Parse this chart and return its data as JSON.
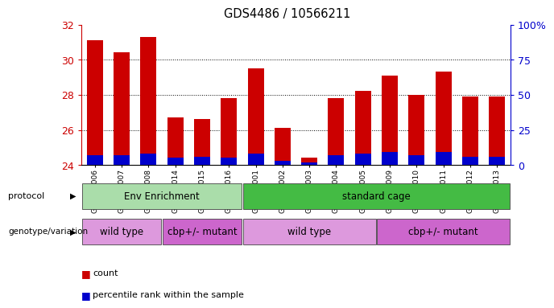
{
  "title": "GDS4486 / 10566211",
  "samples": [
    "GSM766006",
    "GSM766007",
    "GSM766008",
    "GSM766014",
    "GSM766015",
    "GSM766016",
    "GSM766001",
    "GSM766002",
    "GSM766003",
    "GSM766004",
    "GSM766005",
    "GSM766009",
    "GSM766010",
    "GSM766011",
    "GSM766012",
    "GSM766013"
  ],
  "count_values": [
    31.1,
    30.4,
    31.3,
    26.7,
    26.6,
    27.8,
    29.5,
    26.1,
    24.4,
    27.8,
    28.2,
    29.1,
    28.0,
    29.3,
    27.9,
    27.9
  ],
  "percentile_values": [
    7,
    7,
    8,
    5,
    6,
    5,
    8,
    3,
    2,
    7,
    8,
    9,
    7,
    9,
    6,
    6
  ],
  "ymin": 24,
  "ymax": 32,
  "bar_color": "#cc0000",
  "blue_color": "#0000cc",
  "grid_yticks": [
    24,
    26,
    28,
    30,
    32
  ],
  "right_yticks": [
    0,
    25,
    50,
    75,
    100
  ],
  "proto_spans": [
    {
      "label": "Env Enrichment",
      "start": 0,
      "end": 6,
      "color": "#aaddaa"
    },
    {
      "label": "standard cage",
      "start": 6,
      "end": 16,
      "color": "#44bb44"
    }
  ],
  "geno_spans": [
    {
      "label": "wild type",
      "start": 0,
      "end": 3,
      "color": "#dd99dd"
    },
    {
      "label": "cbp+/- mutant",
      "start": 3,
      "end": 6,
      "color": "#cc66cc"
    },
    {
      "label": "wild type",
      "start": 6,
      "end": 11,
      "color": "#dd99dd"
    },
    {
      "label": "cbp+/- mutant",
      "start": 11,
      "end": 16,
      "color": "#cc66cc"
    }
  ],
  "legend_count_color": "#cc0000",
  "legend_pct_color": "#0000cc"
}
